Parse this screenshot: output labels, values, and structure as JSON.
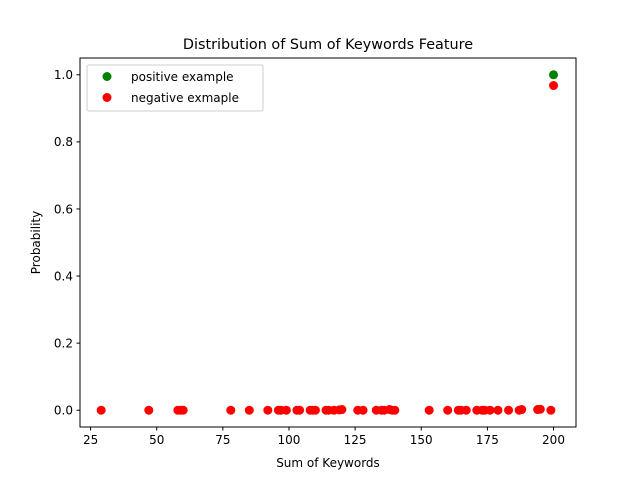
{
  "chart_data": {
    "type": "scatter",
    "title": "Distribution of Sum of Keywords Feature",
    "xlabel": "Sum of Keywords",
    "ylabel": "Probability",
    "xlim": [
      21,
      208.5
    ],
    "ylim": [
      -0.05,
      1.05
    ],
    "xticks": [
      25,
      50,
      75,
      100,
      125,
      150,
      175,
      200
    ],
    "yticks": [
      0.0,
      0.2,
      0.4,
      0.6,
      0.8,
      1.0
    ],
    "xtick_labels": [
      "25",
      "50",
      "75",
      "100",
      "125",
      "150",
      "175",
      "200"
    ],
    "ytick_labels": [
      "0.0",
      "0.2",
      "0.4",
      "0.6",
      "0.8",
      "1.0"
    ],
    "grid": false,
    "legend_position": "top-left",
    "series": [
      {
        "name": "positive example",
        "color": "#008000",
        "points": [
          [
            200,
            1.0
          ]
        ]
      },
      {
        "name": "negative exmaple",
        "color": "#ff0000",
        "points": [
          [
            200,
            0.968
          ],
          [
            29,
            0.0
          ],
          [
            47,
            0.0
          ],
          [
            58,
            0.0
          ],
          [
            59,
            0.0
          ],
          [
            60,
            0.0
          ],
          [
            78,
            0.0
          ],
          [
            85,
            0.0
          ],
          [
            92,
            0.0
          ],
          [
            96,
            0.0
          ],
          [
            97,
            0.0
          ],
          [
            99,
            0.0
          ],
          [
            103,
            0.0
          ],
          [
            104,
            0.0
          ],
          [
            108,
            0.0
          ],
          [
            109,
            0.0
          ],
          [
            110,
            0.0
          ],
          [
            114,
            0.0
          ],
          [
            115,
            0.0
          ],
          [
            117,
            0.0
          ],
          [
            119,
            0.001
          ],
          [
            120,
            0.002
          ],
          [
            126,
            0.0
          ],
          [
            128,
            0.0
          ],
          [
            133,
            0.0
          ],
          [
            135,
            0.0
          ],
          [
            136,
            0.0
          ],
          [
            138,
            0.002
          ],
          [
            139,
            0.0
          ],
          [
            140,
            0.0
          ],
          [
            153,
            0.0
          ],
          [
            160,
            0.0
          ],
          [
            164,
            0.0
          ],
          [
            165,
            0.0
          ],
          [
            167,
            0.0
          ],
          [
            171,
            0.0
          ],
          [
            173,
            0.0
          ],
          [
            174,
            0.0
          ],
          [
            176,
            0.0
          ],
          [
            179,
            0.0
          ],
          [
            183,
            0.0
          ],
          [
            187,
            0.0
          ],
          [
            188,
            0.002
          ],
          [
            194,
            0.002
          ],
          [
            195,
            0.003
          ],
          [
            199,
            0.0
          ]
        ]
      }
    ]
  }
}
